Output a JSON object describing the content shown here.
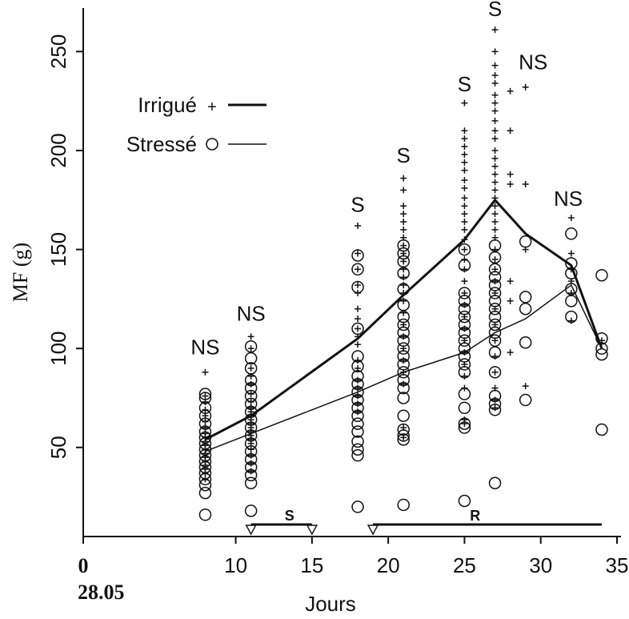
{
  "chart_data": {
    "type": "scatter",
    "xlabel": "Jours",
    "ylabel": "MF (g)",
    "x_origin_label": "28.05",
    "xlim": [
      0,
      35
    ],
    "ylim": [
      5,
      272
    ],
    "x_ticks": [
      0,
      10,
      15,
      20,
      25,
      30,
      35
    ],
    "y_ticks": [
      50,
      100,
      150,
      200,
      250
    ],
    "legend": {
      "placement": "top-left",
      "entries": [
        {
          "label": "Irrigué",
          "marker": "plus",
          "line": "thick"
        },
        {
          "label": "Stressé",
          "marker": "circle",
          "line": "thin"
        }
      ]
    },
    "series": [
      {
        "name": "Irrigué",
        "marker": "plus",
        "mean_x": [
          8,
          11,
          18,
          21,
          25,
          27,
          29,
          32,
          34
        ],
        "mean_y": [
          54,
          66,
          105,
          127,
          155,
          175,
          158,
          142,
          100
        ],
        "points": [
          [
            8,
            88
          ],
          [
            8,
            76
          ],
          [
            8,
            73
          ],
          [
            8,
            69
          ],
          [
            8,
            66
          ],
          [
            8,
            63
          ],
          [
            8,
            60
          ],
          [
            8,
            57
          ],
          [
            8,
            55
          ],
          [
            8,
            53
          ],
          [
            8,
            51
          ],
          [
            8,
            49
          ],
          [
            8,
            47
          ],
          [
            8,
            45
          ],
          [
            8,
            43
          ],
          [
            8,
            41
          ],
          [
            8,
            39
          ],
          [
            8,
            37
          ],
          [
            8,
            34
          ],
          [
            11,
            106
          ],
          [
            11,
            100
          ],
          [
            11,
            90
          ],
          [
            11,
            86
          ],
          [
            11,
            82
          ],
          [
            11,
            77
          ],
          [
            11,
            73
          ],
          [
            11,
            70
          ],
          [
            11,
            68
          ],
          [
            11,
            66
          ],
          [
            11,
            64
          ],
          [
            11,
            62
          ],
          [
            11,
            60
          ],
          [
            11,
            58
          ],
          [
            11,
            56
          ],
          [
            11,
            54
          ],
          [
            11,
            52
          ],
          [
            11,
            49
          ],
          [
            11,
            46
          ],
          [
            11,
            42
          ],
          [
            11,
            38
          ],
          [
            18,
            162
          ],
          [
            18,
            148
          ],
          [
            18,
            140
          ],
          [
            18,
            132
          ],
          [
            18,
            128
          ],
          [
            18,
            120
          ],
          [
            18,
            115
          ],
          [
            18,
            110
          ],
          [
            18,
            106
          ],
          [
            18,
            102
          ],
          [
            18,
            94
          ],
          [
            18,
            90
          ],
          [
            18,
            84
          ],
          [
            18,
            80
          ],
          [
            18,
            76
          ],
          [
            18,
            72
          ],
          [
            18,
            68
          ],
          [
            21,
            186
          ],
          [
            21,
            180
          ],
          [
            21,
            172
          ],
          [
            21,
            168
          ],
          [
            21,
            164
          ],
          [
            21,
            160
          ],
          [
            21,
            156
          ],
          [
            21,
            152
          ],
          [
            21,
            148
          ],
          [
            21,
            144
          ],
          [
            21,
            140
          ],
          [
            21,
            136
          ],
          [
            21,
            132
          ],
          [
            21,
            128
          ],
          [
            21,
            124
          ],
          [
            21,
            118
          ],
          [
            21,
            112
          ],
          [
            21,
            106
          ],
          [
            21,
            100
          ],
          [
            21,
            94
          ],
          [
            21,
            88
          ],
          [
            21,
            82
          ],
          [
            21,
            60
          ],
          [
            21,
            55
          ],
          [
            25,
            224
          ],
          [
            25,
            210
          ],
          [
            25,
            206
          ],
          [
            25,
            202
          ],
          [
            25,
            198
          ],
          [
            25,
            194
          ],
          [
            25,
            190
          ],
          [
            25,
            185
          ],
          [
            25,
            181
          ],
          [
            25,
            176
          ],
          [
            25,
            172
          ],
          [
            25,
            168
          ],
          [
            25,
            164
          ],
          [
            25,
            160
          ],
          [
            25,
            155
          ],
          [
            25,
            150
          ],
          [
            25,
            145
          ],
          [
            25,
            140
          ],
          [
            25,
            134
          ],
          [
            25,
            128
          ],
          [
            25,
            122
          ],
          [
            25,
            116
          ],
          [
            25,
            110
          ],
          [
            25,
            104
          ],
          [
            25,
            98
          ],
          [
            25,
            92
          ],
          [
            25,
            86
          ],
          [
            25,
            80
          ],
          [
            25,
            64
          ],
          [
            25,
            62
          ],
          [
            27,
            261
          ],
          [
            27,
            250
          ],
          [
            27,
            243
          ],
          [
            27,
            238
          ],
          [
            27,
            234
          ],
          [
            27,
            228
          ],
          [
            27,
            224
          ],
          [
            27,
            220
          ],
          [
            27,
            215
          ],
          [
            27,
            210
          ],
          [
            27,
            206
          ],
          [
            27,
            200
          ],
          [
            27,
            196
          ],
          [
            27,
            192
          ],
          [
            27,
            188
          ],
          [
            27,
            184
          ],
          [
            27,
            180
          ],
          [
            27,
            176
          ],
          [
            27,
            172
          ],
          [
            27,
            168
          ],
          [
            27,
            164
          ],
          [
            27,
            160
          ],
          [
            27,
            156
          ],
          [
            27,
            150
          ],
          [
            27,
            145
          ],
          [
            27,
            140
          ],
          [
            27,
            134
          ],
          [
            27,
            128
          ],
          [
            27,
            120
          ],
          [
            27,
            112
          ],
          [
            27,
            104
          ],
          [
            27,
            96
          ],
          [
            27,
            88
          ],
          [
            27,
            80
          ],
          [
            27,
            74
          ],
          [
            27,
            70
          ],
          [
            28,
            230
          ],
          [
            28,
            210
          ],
          [
            28,
            188
          ],
          [
            28,
            183
          ],
          [
            28,
            134
          ],
          [
            28,
            124
          ],
          [
            28,
            98
          ],
          [
            29,
            232
          ],
          [
            29,
            183
          ],
          [
            29,
            150
          ],
          [
            29,
            81
          ],
          [
            32,
            166
          ],
          [
            32,
            148
          ],
          [
            32,
            140
          ],
          [
            32,
            134
          ],
          [
            32,
            128
          ],
          [
            32,
            114
          ],
          [
            34,
            104
          ]
        ]
      },
      {
        "name": "Stressé",
        "marker": "circle",
        "mean_x": [
          8,
          11,
          18,
          21,
          25,
          27,
          29,
          32,
          34
        ],
        "mean_y": [
          48,
          57,
          78,
          88,
          98,
          108,
          115,
          132,
          100
        ],
        "points": [
          [
            8,
            77
          ],
          [
            8,
            75
          ],
          [
            8,
            70
          ],
          [
            8,
            66
          ],
          [
            8,
            62
          ],
          [
            8,
            58
          ],
          [
            8,
            55
          ],
          [
            8,
            52
          ],
          [
            8,
            49
          ],
          [
            8,
            46
          ],
          [
            8,
            43
          ],
          [
            8,
            40
          ],
          [
            8,
            37
          ],
          [
            8,
            34
          ],
          [
            8,
            31
          ],
          [
            8,
            27
          ],
          [
            8,
            16
          ],
          [
            11,
            101
          ],
          [
            11,
            95
          ],
          [
            11,
            90
          ],
          [
            11,
            84
          ],
          [
            11,
            80
          ],
          [
            11,
            76
          ],
          [
            11,
            72
          ],
          [
            11,
            68
          ],
          [
            11,
            64
          ],
          [
            11,
            60
          ],
          [
            11,
            56
          ],
          [
            11,
            52
          ],
          [
            11,
            48
          ],
          [
            11,
            44
          ],
          [
            11,
            40
          ],
          [
            11,
            36
          ],
          [
            11,
            32
          ],
          [
            11,
            18
          ],
          [
            18,
            147
          ],
          [
            18,
            140
          ],
          [
            18,
            131
          ],
          [
            18,
            110
          ],
          [
            18,
            96
          ],
          [
            18,
            91
          ],
          [
            18,
            86
          ],
          [
            18,
            82
          ],
          [
            18,
            78
          ],
          [
            18,
            74
          ],
          [
            18,
            70
          ],
          [
            18,
            66
          ],
          [
            18,
            62
          ],
          [
            18,
            58
          ],
          [
            18,
            53
          ],
          [
            18,
            49
          ],
          [
            18,
            46
          ],
          [
            18,
            20
          ],
          [
            21,
            152
          ],
          [
            21,
            148
          ],
          [
            21,
            144
          ],
          [
            21,
            138
          ],
          [
            21,
            130
          ],
          [
            21,
            122
          ],
          [
            21,
            116
          ],
          [
            21,
            112
          ],
          [
            21,
            108
          ],
          [
            21,
            104
          ],
          [
            21,
            100
          ],
          [
            21,
            96
          ],
          [
            21,
            92
          ],
          [
            21,
            88
          ],
          [
            21,
            84
          ],
          [
            21,
            80
          ],
          [
            21,
            75
          ],
          [
            21,
            66
          ],
          [
            21,
            59
          ],
          [
            21,
            56
          ],
          [
            21,
            54
          ],
          [
            21,
            21
          ],
          [
            25,
            150
          ],
          [
            25,
            142
          ],
          [
            25,
            128
          ],
          [
            25,
            124
          ],
          [
            25,
            120
          ],
          [
            25,
            116
          ],
          [
            25,
            112
          ],
          [
            25,
            108
          ],
          [
            25,
            104
          ],
          [
            25,
            100
          ],
          [
            25,
            96
          ],
          [
            25,
            92
          ],
          [
            25,
            88
          ],
          [
            25,
            77
          ],
          [
            25,
            70
          ],
          [
            25,
            62
          ],
          [
            25,
            60
          ],
          [
            25,
            23
          ],
          [
            27,
            152
          ],
          [
            27,
            146
          ],
          [
            27,
            140
          ],
          [
            27,
            136
          ],
          [
            27,
            132
          ],
          [
            27,
            128
          ],
          [
            27,
            124
          ],
          [
            27,
            120
          ],
          [
            27,
            116
          ],
          [
            27,
            112
          ],
          [
            27,
            108
          ],
          [
            27,
            104
          ],
          [
            27,
            98
          ],
          [
            27,
            88
          ],
          [
            27,
            76
          ],
          [
            27,
            72
          ],
          [
            27,
            69
          ],
          [
            27,
            32
          ],
          [
            29,
            154
          ],
          [
            29,
            126
          ],
          [
            29,
            120
          ],
          [
            29,
            103
          ],
          [
            29,
            74
          ],
          [
            32,
            158
          ],
          [
            32,
            143
          ],
          [
            32,
            138
          ],
          [
            32,
            130
          ],
          [
            32,
            124
          ],
          [
            32,
            116
          ],
          [
            34,
            137
          ],
          [
            34,
            105
          ],
          [
            34,
            100
          ],
          [
            34,
            97
          ],
          [
            34,
            59
          ]
        ]
      }
    ],
    "annotations": [
      {
        "text": "NS",
        "x": 8,
        "y": 97
      },
      {
        "text": "NS",
        "x": 11,
        "y": 114
      },
      {
        "text": "S",
        "x": 18,
        "y": 169
      },
      {
        "text": "S",
        "x": 21,
        "y": 194
      },
      {
        "text": "S",
        "x": 25,
        "y": 230
      },
      {
        "text": "S",
        "x": 27,
        "y": 268
      },
      {
        "text": "NS",
        "x": 29.5,
        "y": 241
      },
      {
        "text": "NS",
        "x": 31.8,
        "y": 172
      }
    ],
    "periods": [
      {
        "label": "S",
        "start": 11,
        "end": 15
      },
      {
        "label": "R",
        "start": 19,
        "end": 34
      }
    ]
  }
}
